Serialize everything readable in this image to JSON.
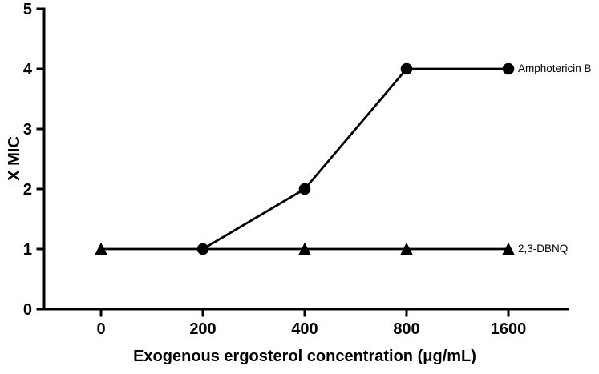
{
  "figure": {
    "background": "#ffffff",
    "ink_color": "#000000"
  },
  "chart_data": {
    "type": "line",
    "title": "",
    "xlabel": "Exogenous ergosterol concentration (μg/mL)",
    "ylabel": "X MIC",
    "x_tick_labels": [
      "0",
      "200",
      "400",
      "800",
      "1600"
    ],
    "y_ticks": [
      0,
      1,
      2,
      3,
      4,
      5
    ],
    "ylim": [
      0,
      5
    ],
    "x_scale": "categorical",
    "grid": false,
    "legend_position": "direct labels right of last data point",
    "series": [
      {
        "name": "Amphotericin B",
        "marker": "filled-circle",
        "color": "#000000",
        "x": [
          200,
          400,
          800,
          1600
        ],
        "values": [
          1,
          2,
          4,
          4
        ],
        "markers_visible_at": [
          200,
          400,
          800,
          1600
        ]
      },
      {
        "name": "2,3-DBNQ",
        "marker": "filled-triangle",
        "color": "#000000",
        "x": [
          0,
          200,
          400,
          800,
          1600
        ],
        "values": [
          1,
          1,
          1,
          1,
          1
        ],
        "markers_visible_at": [
          0,
          400,
          800,
          1600
        ]
      }
    ]
  }
}
